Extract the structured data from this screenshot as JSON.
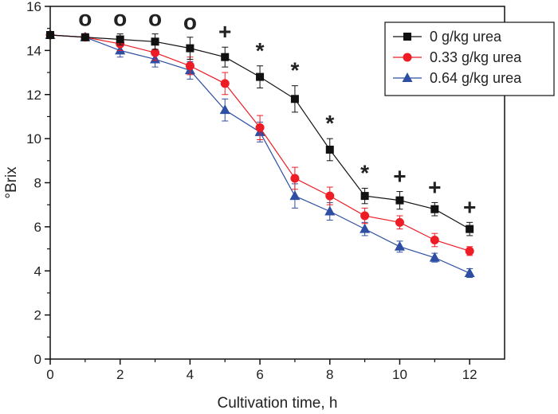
{
  "chart_data": {
    "type": "line",
    "xlabel": "Cultivation time, h",
    "ylabel": "°Brix",
    "xlim": [
      0,
      13
    ],
    "ylim": [
      0,
      16
    ],
    "xticks": [
      0,
      2,
      4,
      6,
      8,
      10,
      12
    ],
    "yticks": [
      0,
      2,
      4,
      6,
      8,
      10,
      12,
      14,
      16
    ],
    "x": [
      0,
      1,
      2,
      3,
      4,
      5,
      6,
      7,
      8,
      9,
      10,
      11,
      12
    ],
    "series": [
      {
        "name": "0 g/kg urea",
        "color": "#111111",
        "marker": "square",
        "values": [
          14.7,
          14.6,
          14.5,
          14.4,
          14.1,
          13.7,
          12.8,
          11.8,
          9.5,
          7.4,
          7.2,
          6.8,
          5.9
        ],
        "errors": [
          0.15,
          0.15,
          0.25,
          0.35,
          0.5,
          0.45,
          0.5,
          0.6,
          0.5,
          0.35,
          0.4,
          0.3,
          0.3
        ]
      },
      {
        "name": "0.33 g/kg urea",
        "color": "#ee1c25",
        "marker": "circle",
        "values": [
          14.7,
          14.6,
          14.3,
          13.9,
          13.3,
          12.5,
          10.5,
          8.2,
          7.4,
          6.5,
          6.2,
          5.4,
          4.9
        ],
        "errors": [
          0.15,
          0.15,
          0.3,
          0.35,
          0.4,
          0.5,
          0.55,
          0.5,
          0.4,
          0.35,
          0.3,
          0.3,
          0.2
        ]
      },
      {
        "name": "0.64 g/kg urea",
        "color": "#2d4ea3",
        "marker": "triangle",
        "values": [
          14.7,
          14.6,
          14.0,
          13.6,
          13.1,
          11.3,
          10.3,
          7.4,
          6.7,
          5.9,
          5.1,
          4.6,
          3.9
        ],
        "errors": [
          0.15,
          0.15,
          0.3,
          0.35,
          0.4,
          0.5,
          0.45,
          0.55,
          0.4,
          0.3,
          0.25,
          0.2,
          0.2
        ]
      }
    ],
    "annotations": [
      {
        "x": 1,
        "text": "o"
      },
      {
        "x": 2,
        "text": "o"
      },
      {
        "x": 3,
        "text": "o"
      },
      {
        "x": 4,
        "text": "o"
      },
      {
        "x": 5,
        "text": "+"
      },
      {
        "x": 6,
        "text": "*"
      },
      {
        "x": 7,
        "text": "*"
      },
      {
        "x": 8,
        "text": "*"
      },
      {
        "x": 9,
        "text": "*"
      },
      {
        "x": 10,
        "text": "+"
      },
      {
        "x": 11,
        "text": "+"
      },
      {
        "x": 12,
        "text": "+"
      }
    ],
    "legend": "top-right",
    "grid": false
  }
}
